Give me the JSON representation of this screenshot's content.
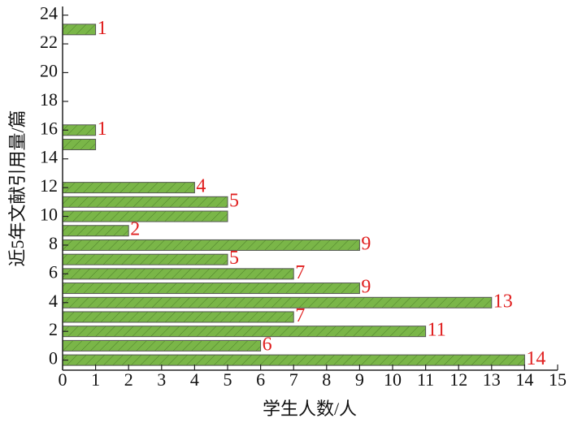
{
  "chart_data": {
    "type": "barh",
    "x_label": "学生人数/人",
    "y_label": "近5年文献引用量/篇",
    "y": [
      0,
      1,
      2,
      3,
      4,
      5,
      6,
      7,
      8,
      9,
      10,
      11,
      12,
      15,
      16,
      23
    ],
    "values": [
      14,
      6,
      11,
      7,
      13,
      9,
      7,
      5,
      9,
      2,
      5,
      5,
      4,
      1,
      1,
      1
    ],
    "value_labels": [
      "14",
      "6",
      "11",
      "7",
      "13",
      "9",
      "7",
      "5",
      "9",
      "2",
      null,
      "5",
      "4",
      null,
      "1",
      "1"
    ],
    "color": "#7ab648",
    "xlim": [
      0,
      15
    ],
    "xticks": [
      0,
      1,
      2,
      3,
      4,
      5,
      6,
      7,
      8,
      9,
      10,
      11,
      12,
      13,
      14,
      15
    ],
    "ylim": [
      -0.7,
      24.6
    ],
    "yticks": [
      0,
      2,
      4,
      6,
      8,
      10,
      12,
      14,
      16,
      18,
      20,
      22,
      24
    ]
  }
}
